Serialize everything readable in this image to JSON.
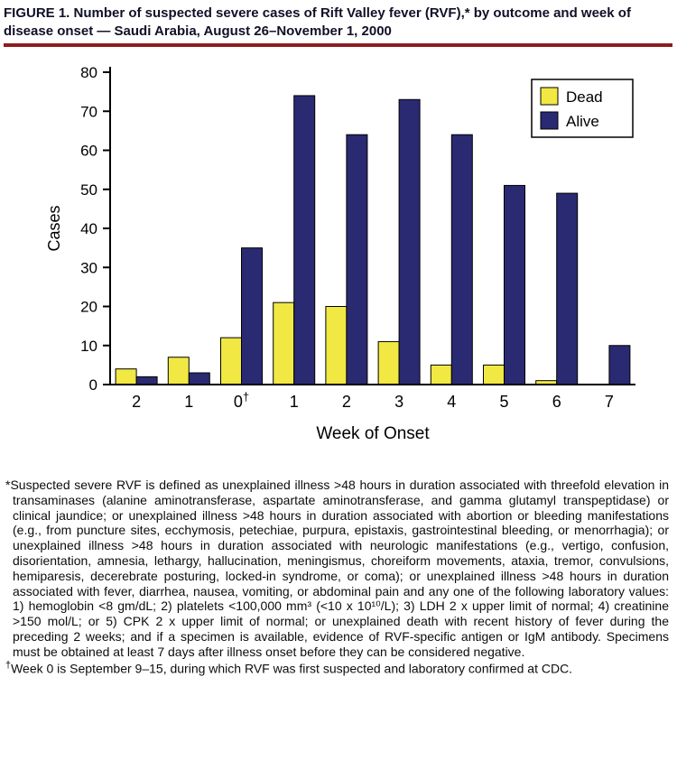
{
  "title": {
    "text": "FIGURE 1. Number of suspected severe cases of Rift Valley fever (RVF),* by outcome and week of disease onset — Saudi Arabia, August 26–November 1, 2000"
  },
  "chart_data": {
    "type": "bar",
    "title": "Number of suspected severe cases of Rift Valley fever (RVF), by outcome and week of disease onset — Saudi Arabia, August 26–November 1, 2000",
    "categories": [
      "2",
      "1",
      "0†",
      "1",
      "2",
      "3",
      "4",
      "5",
      "6",
      "7"
    ],
    "series": [
      {
        "name": "Dead",
        "color": "#f1e843",
        "values": [
          4,
          7,
          12,
          21,
          20,
          11,
          5,
          5,
          1,
          0
        ]
      },
      {
        "name": "Alive",
        "color": "#2a2a72",
        "values": [
          2,
          3,
          35,
          74,
          64,
          73,
          64,
          51,
          49,
          10
        ]
      }
    ],
    "xlabel": "Week of Onset",
    "ylabel": "Cases",
    "ylim": [
      0,
      80
    ],
    "ytick_interval": 10,
    "ytick_labels": [
      "0",
      "10",
      "20",
      "30",
      "40",
      "50",
      "60",
      "70",
      "80"
    ],
    "grid": false,
    "legend_position": "top-right"
  },
  "footnotes": {
    "asterisk": {
      "symbol": "*",
      "text": "Suspected severe RVF is defined as unexplained illness >48 hours in duration associated with threefold elevation in transaminases (alanine aminotransferase, aspartate aminotransferase, and gamma glutamyl transpeptidase) or clinical jaundice; or unexplained illness >48 hours in duration associated with abortion or bleeding manifestations (e.g., from puncture sites, ecchymosis, petechiae, purpura, epistaxis, gastrointestinal bleeding, or menorrhagia); or unexplained illness >48 hours in duration associated with neurologic manifestations (e.g., vertigo, confusion, disorientation, amnesia, lethargy, hallucination, meningismus, choreiform movements, ataxia, tremor, convulsions, hemiparesis, decerebrate posturing, locked-in syndrome, or coma); or unexplained illness >48 hours in duration associated with fever, diarrhea, nausea, vomiting, or abdominal pain and any one of the following laboratory values: 1) hemoglobin <8 gm/dL; 2) platelets <100,000 mm³ (<10 x 10¹⁰/L); 3) LDH 2 x upper limit of normal; 4) creatinine >150 mol/L; or 5) CPK 2 x upper limit of normal; or unexplained death with recent history of fever during the preceding 2 weeks; and if a specimen is available, evidence of RVF-specific antigen or IgM antibody. Specimens must be obtained at least 7 days after illness onset before they can be considered negative."
    },
    "dagger": {
      "symbol": "†",
      "text": "Week 0 is September 9–15, during which RVF was first suspected and laboratory confirmed at CDC."
    }
  },
  "colors": {
    "title_rule": "#8e1b1e",
    "axis": "#000000",
    "dead": "#f1e843",
    "alive": "#2a2a72"
  }
}
